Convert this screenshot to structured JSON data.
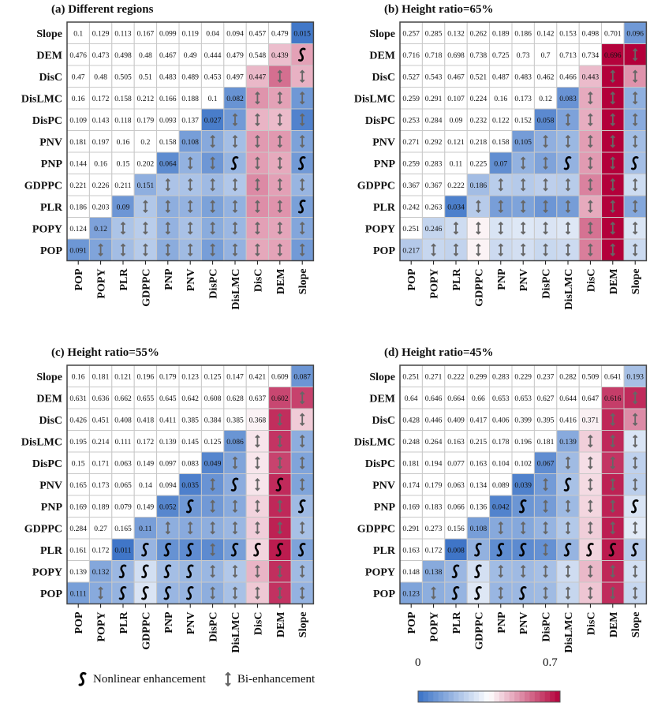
{
  "chart_data": [
    {
      "type": "heatmap",
      "title": "(a) Different regions",
      "variables": [
        "POP",
        "POPY",
        "PLR",
        "GDPPC",
        "PNP",
        "PNV",
        "DisPC",
        "DisLMC",
        "DisC",
        "DEM",
        "Slope"
      ],
      "values": {
        "POP": [
          0.091
        ],
        "POPY": [
          0.124,
          0.12
        ],
        "PLR": [
          0.186,
          0.203,
          0.09
        ],
        "GDPPC": [
          0.221,
          0.226,
          0.211,
          0.151
        ],
        "PNP": [
          0.144,
          0.16,
          0.15,
          0.202,
          0.064
        ],
        "PNV": [
          0.181,
          0.197,
          0.16,
          0.2,
          0.158,
          0.108
        ],
        "DisPC": [
          0.109,
          0.143,
          0.118,
          0.179,
          0.093,
          0.137,
          0.027
        ],
        "DisLMC": [
          0.16,
          0.172,
          0.158,
          0.212,
          0.166,
          0.188,
          0.1,
          0.082
        ],
        "DisC": [
          0.47,
          0.48,
          0.505,
          0.51,
          0.483,
          0.489,
          0.453,
          0.497,
          0.447
        ],
        "DEM": [
          0.476,
          0.473,
          0.498,
          0.48,
          0.467,
          0.49,
          0.444,
          0.479,
          0.548,
          0.439
        ],
        "Slope": [
          0.1,
          0.129,
          0.113,
          0.167,
          0.099,
          0.119,
          0.04,
          0.094,
          0.457,
          0.479,
          0.015
        ]
      },
      "nonlinear": [
        [
          "DEM",
          "Slope"
        ],
        [
          "PNP",
          "DisLMC"
        ],
        [
          "PNP",
          "Slope"
        ],
        [
          "PLR",
          "Slope"
        ]
      ]
    },
    {
      "type": "heatmap",
      "title": "(b) Height ratio=65%",
      "variables": [
        "POP",
        "POPY",
        "PLR",
        "GDPPC",
        "PNP",
        "PNV",
        "DisPC",
        "DisLMC",
        "DisC",
        "DEM",
        "Slope"
      ],
      "values": {
        "POP": [
          0.217
        ],
        "POPY": [
          0.251,
          0.246
        ],
        "PLR": [
          0.242,
          0.263,
          0.034
        ],
        "GDPPC": [
          0.367,
          0.367,
          0.222,
          0.186
        ],
        "PNP": [
          0.259,
          0.283,
          0.11,
          0.225,
          0.07
        ],
        "PNV": [
          0.271,
          0.292,
          0.121,
          0.218,
          0.158,
          0.105
        ],
        "DisPC": [
          0.253,
          0.284,
          0.09,
          0.232,
          0.122,
          0.152,
          0.058
        ],
        "DisLMC": [
          0.259,
          0.291,
          0.107,
          0.224,
          0.16,
          0.173,
          0.12,
          0.083
        ],
        "DisC": [
          0.527,
          0.543,
          0.467,
          0.521,
          0.487,
          0.483,
          0.462,
          0.466,
          0.443
        ],
        "DEM": [
          0.716,
          0.718,
          0.698,
          0.738,
          0.725,
          0.73,
          0.7,
          0.713,
          0.734,
          0.696
        ],
        "Slope": [
          0.257,
          0.285,
          0.132,
          0.262,
          0.189,
          0.186,
          0.142,
          0.153,
          0.498,
          0.701,
          0.096
        ]
      },
      "nonlinear": [
        [
          "PNP",
          "DisLMC"
        ],
        [
          "PNP",
          "Slope"
        ]
      ]
    },
    {
      "type": "heatmap",
      "title": "(c) Height ratio=55%",
      "variables": [
        "POP",
        "POPY",
        "PLR",
        "GDPPC",
        "PNP",
        "PNV",
        "DisPC",
        "DisLMC",
        "DisC",
        "DEM",
        "Slope"
      ],
      "values": {
        "POP": [
          0.111
        ],
        "POPY": [
          0.139,
          0.132
        ],
        "PLR": [
          0.161,
          0.172,
          0.011
        ],
        "GDPPC": [
          0.284,
          0.27,
          0.165,
          0.11
        ],
        "PNP": [
          0.169,
          0.189,
          0.079,
          0.149,
          0.052
        ],
        "PNV": [
          0.165,
          0.173,
          0.065,
          0.14,
          0.094,
          0.035
        ],
        "DisPC": [
          0.15,
          0.171,
          0.063,
          0.149,
          0.097,
          0.083,
          0.049
        ],
        "DisLMC": [
          0.195,
          0.214,
          0.111,
          0.172,
          0.139,
          0.145,
          0.125,
          0.086
        ],
        "DisC": [
          0.426,
          0.451,
          0.408,
          0.418,
          0.411,
          0.385,
          0.384,
          0.385,
          0.368
        ],
        "DEM": [
          0.631,
          0.636,
          0.662,
          0.655,
          0.645,
          0.642,
          0.608,
          0.628,
          0.637,
          0.602
        ],
        "Slope": [
          0.16,
          0.181,
          0.121,
          0.196,
          0.179,
          0.123,
          0.125,
          0.147,
          0.421,
          0.609,
          0.087
        ]
      },
      "nonlinear": [
        [
          "PNV",
          "DisLMC"
        ],
        [
          "PNV",
          "DEM"
        ],
        [
          "PNP",
          "PNV"
        ],
        [
          "PNP",
          "Slope"
        ],
        [
          "PLR",
          "GDPPC"
        ],
        [
          "PLR",
          "PNP"
        ],
        [
          "PLR",
          "PNV"
        ],
        [
          "PLR",
          "DisLMC"
        ],
        [
          "PLR",
          "DisC"
        ],
        [
          "PLR",
          "DEM"
        ],
        [
          "PLR",
          "Slope"
        ],
        [
          "POPY",
          "PLR"
        ],
        [
          "POPY",
          "GDPPC"
        ],
        [
          "POPY",
          "PNP"
        ],
        [
          "POPY",
          "PNV"
        ],
        [
          "POP",
          "PLR"
        ],
        [
          "POP",
          "GDPPC"
        ],
        [
          "POP",
          "PNP"
        ],
        [
          "POP",
          "PNV"
        ]
      ]
    },
    {
      "type": "heatmap",
      "title": "(d) Height ratio=45%",
      "variables": [
        "POP",
        "POPY",
        "PLR",
        "GDPPC",
        "PNP",
        "PNV",
        "DisPC",
        "DisLMC",
        "DisC",
        "DEM",
        "Slope"
      ],
      "values": {
        "POP": [
          0.123
        ],
        "POPY": [
          0.148,
          0.138
        ],
        "PLR": [
          0.163,
          0.172,
          0.008
        ],
        "GDPPC": [
          0.291,
          0.273,
          0.156,
          0.108
        ],
        "PNP": [
          0.169,
          0.183,
          0.066,
          0.136,
          0.042
        ],
        "PNV": [
          0.174,
          0.179,
          0.063,
          0.134,
          0.089,
          0.039
        ],
        "DisPC": [
          0.181,
          0.194,
          0.077,
          0.163,
          0.104,
          0.102,
          0.067
        ],
        "DisLMC": [
          0.248,
          0.264,
          0.163,
          0.215,
          0.178,
          0.196,
          0.181,
          0.139
        ],
        "DisC": [
          0.428,
          0.446,
          0.409,
          0.417,
          0.406,
          0.399,
          0.395,
          0.416,
          0.371
        ],
        "DEM": [
          0.64,
          0.646,
          0.664,
          0.66,
          0.653,
          0.653,
          0.627,
          0.644,
          0.647,
          0.616
        ],
        "Slope": [
          0.251,
          0.271,
          0.222,
          0.299,
          0.283,
          0.229,
          0.237,
          0.282,
          0.509,
          0.641,
          0.193
        ]
      },
      "nonlinear": [
        [
          "PNV",
          "DisLMC"
        ],
        [
          "PNP",
          "PNV"
        ],
        [
          "PNP",
          "Slope"
        ],
        [
          "PLR",
          "GDPPC"
        ],
        [
          "PLR",
          "PNP"
        ],
        [
          "PLR",
          "PNV"
        ],
        [
          "PLR",
          "DisLMC"
        ],
        [
          "PLR",
          "DisC"
        ],
        [
          "PLR",
          "DEM"
        ],
        [
          "PLR",
          "Slope"
        ],
        [
          "POPY",
          "PLR"
        ],
        [
          "POPY",
          "GDPPC"
        ],
        [
          "POP",
          "PLR"
        ],
        [
          "POP",
          "GDPPC"
        ],
        [
          "POP",
          "PNV"
        ]
      ]
    }
  ],
  "legend": {
    "nonlinear_label": "Nonlinear enhancement",
    "bi_label": "Bi-enhancement",
    "nonlinear_icon": "s-curve-icon",
    "bi_icon": "double-arrow-icon"
  },
  "colorbar": {
    "min_label": "0",
    "max_label": "0.7",
    "range": [
      0,
      0.7
    ],
    "colors": {
      "low": "#3a72c6",
      "mid": "#ffffff",
      "high": "#b3003a"
    }
  }
}
